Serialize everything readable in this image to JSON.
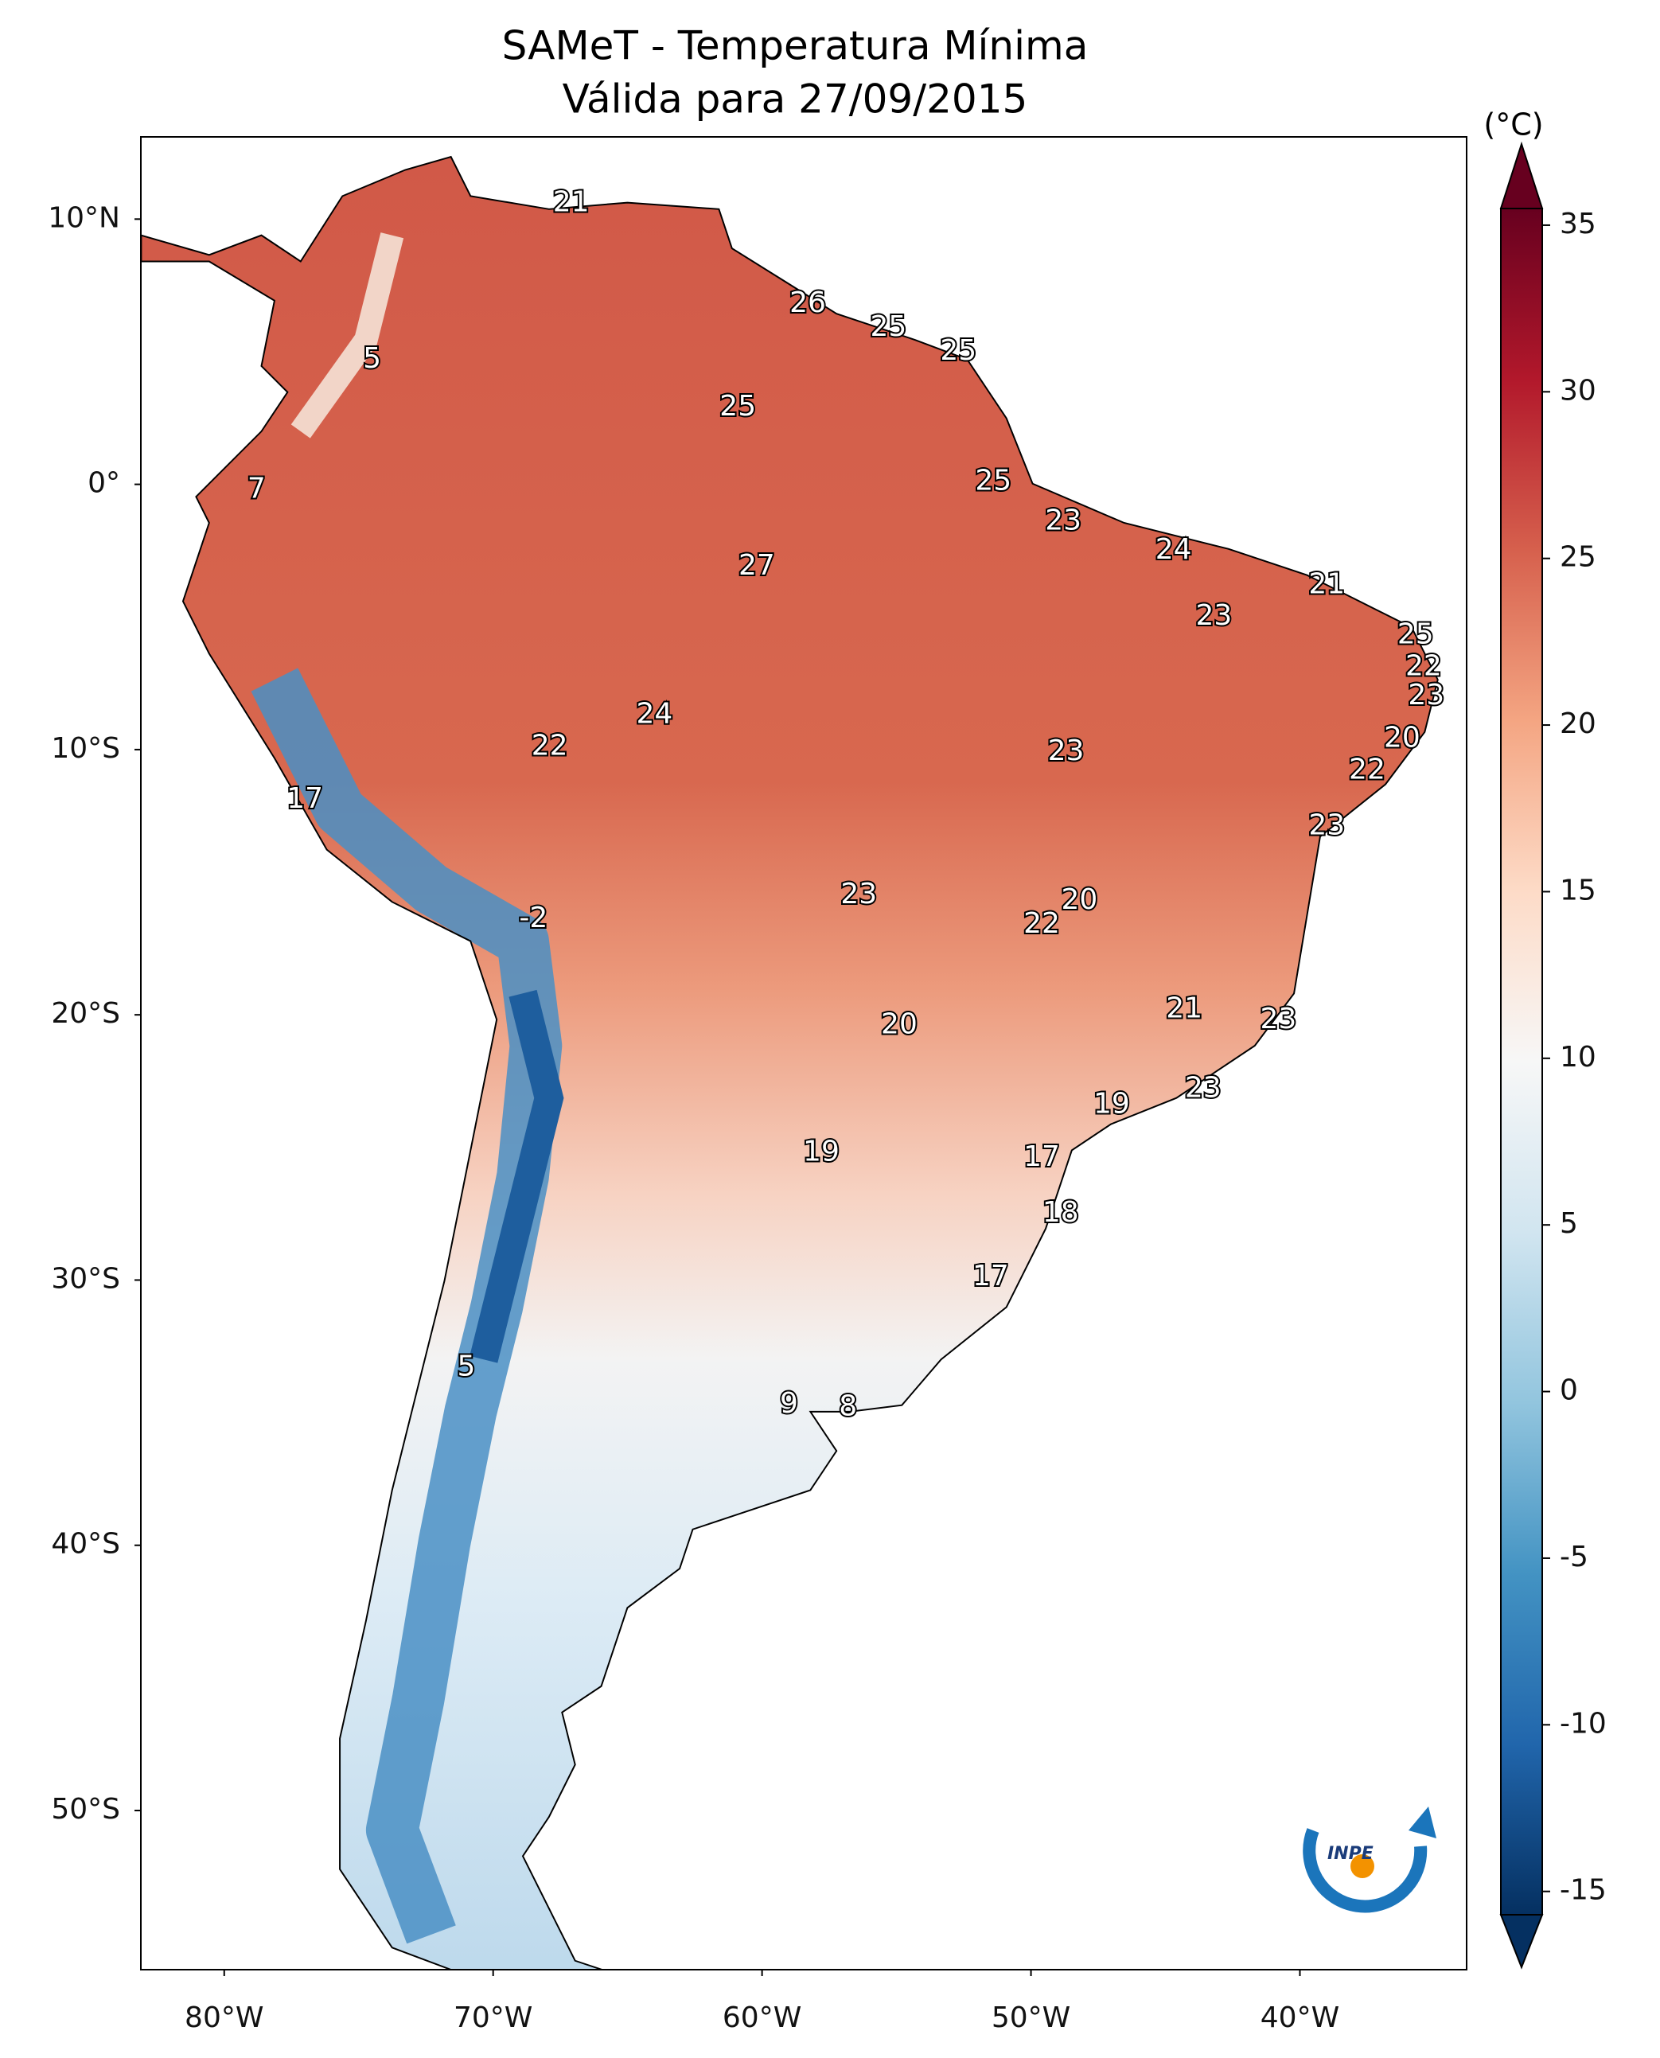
{
  "chart_data": {
    "type": "map",
    "title": "SAMeT - Temperatura Mínima",
    "subtitle": "Válida para 27/09/2015",
    "colorbar_label": "(°C)",
    "logo_text": "INPE",
    "xlim": [
      -83.1,
      -33.8
    ],
    "ylim": [
      -56,
      13.1
    ],
    "xticks": [
      {
        "value": -80,
        "label": "80°W"
      },
      {
        "value": -70,
        "label": "70°W"
      },
      {
        "value": -60,
        "label": "60°W"
      },
      {
        "value": -50,
        "label": "50°W"
      },
      {
        "value": -40,
        "label": "40°W"
      }
    ],
    "yticks": [
      {
        "value": 10,
        "label": "10°N"
      },
      {
        "value": 0,
        "label": "0°"
      },
      {
        "value": -10,
        "label": "10°S"
      },
      {
        "value": -20,
        "label": "20°S"
      },
      {
        "value": -30,
        "label": "30°S"
      },
      {
        "value": -40,
        "label": "40°S"
      },
      {
        "value": -50,
        "label": "50°S"
      }
    ],
    "clim": [
      -15.7,
      35.5
    ],
    "cticks": [
      35,
      30,
      25,
      20,
      15,
      10,
      5,
      0,
      -5,
      -10,
      -15
    ],
    "colormap": [
      "#053061",
      "#2166ac",
      "#4393c3",
      "#92c5de",
      "#d1e5f0",
      "#f7f7f7",
      "#fddbc7",
      "#f4a582",
      "#d6604d",
      "#b2182b",
      "#67001f"
    ],
    "labels": [
      {
        "lon": -67.1,
        "lat": 10.6,
        "value": 21
      },
      {
        "lon": -58.3,
        "lat": 6.8,
        "value": 26
      },
      {
        "lon": -55.3,
        "lat": 5.9,
        "value": 25
      },
      {
        "lon": -52.7,
        "lat": 5.0,
        "value": 25
      },
      {
        "lon": -74.5,
        "lat": 4.7,
        "value": 5
      },
      {
        "lon": -60.9,
        "lat": 2.9,
        "value": 25
      },
      {
        "lon": -78.8,
        "lat": -0.2,
        "value": 7
      },
      {
        "lon": -51.4,
        "lat": 0.1,
        "value": 25
      },
      {
        "lon": -48.8,
        "lat": -1.4,
        "value": 23
      },
      {
        "lon": -44.7,
        "lat": -2.5,
        "value": 24
      },
      {
        "lon": -39.0,
        "lat": -3.8,
        "value": 21
      },
      {
        "lon": -60.2,
        "lat": -3.1,
        "value": 27
      },
      {
        "lon": -43.2,
        "lat": -5.0,
        "value": 23
      },
      {
        "lon": -35.7,
        "lat": -5.7,
        "value": 25
      },
      {
        "lon": -35.4,
        "lat": -6.9,
        "value": 22
      },
      {
        "lon": -35.3,
        "lat": -8.0,
        "value": 23
      },
      {
        "lon": -64.0,
        "lat": -8.7,
        "value": 24
      },
      {
        "lon": -36.2,
        "lat": -9.6,
        "value": 20
      },
      {
        "lon": -67.9,
        "lat": -9.9,
        "value": 22
      },
      {
        "lon": -48.7,
        "lat": -10.1,
        "value": 23
      },
      {
        "lon": -37.5,
        "lat": -10.8,
        "value": 22
      },
      {
        "lon": -77.0,
        "lat": -11.9,
        "value": 17
      },
      {
        "lon": -39.0,
        "lat": -12.9,
        "value": 23
      },
      {
        "lon": -56.4,
        "lat": -15.5,
        "value": 23
      },
      {
        "lon": -48.2,
        "lat": -15.7,
        "value": 20
      },
      {
        "lon": -68.5,
        "lat": -16.4,
        "value": -2
      },
      {
        "lon": -49.6,
        "lat": -16.6,
        "value": 22
      },
      {
        "lon": -44.3,
        "lat": -19.8,
        "value": 21
      },
      {
        "lon": -54.9,
        "lat": -20.4,
        "value": 20
      },
      {
        "lon": -40.8,
        "lat": -20.2,
        "value": 23
      },
      {
        "lon": -43.6,
        "lat": -22.8,
        "value": 23
      },
      {
        "lon": -47.0,
        "lat": -23.4,
        "value": 19
      },
      {
        "lon": -57.8,
        "lat": -25.2,
        "value": 19
      },
      {
        "lon": -49.6,
        "lat": -25.4,
        "value": 17
      },
      {
        "lon": -48.9,
        "lat": -27.5,
        "value": 18
      },
      {
        "lon": -51.5,
        "lat": -29.9,
        "value": 17
      },
      {
        "lon": -71.0,
        "lat": -33.3,
        "value": 5
      },
      {
        "lon": -59.0,
        "lat": -34.7,
        "value": 9
      },
      {
        "lon": -56.8,
        "lat": -34.8,
        "value": 8
      }
    ]
  }
}
